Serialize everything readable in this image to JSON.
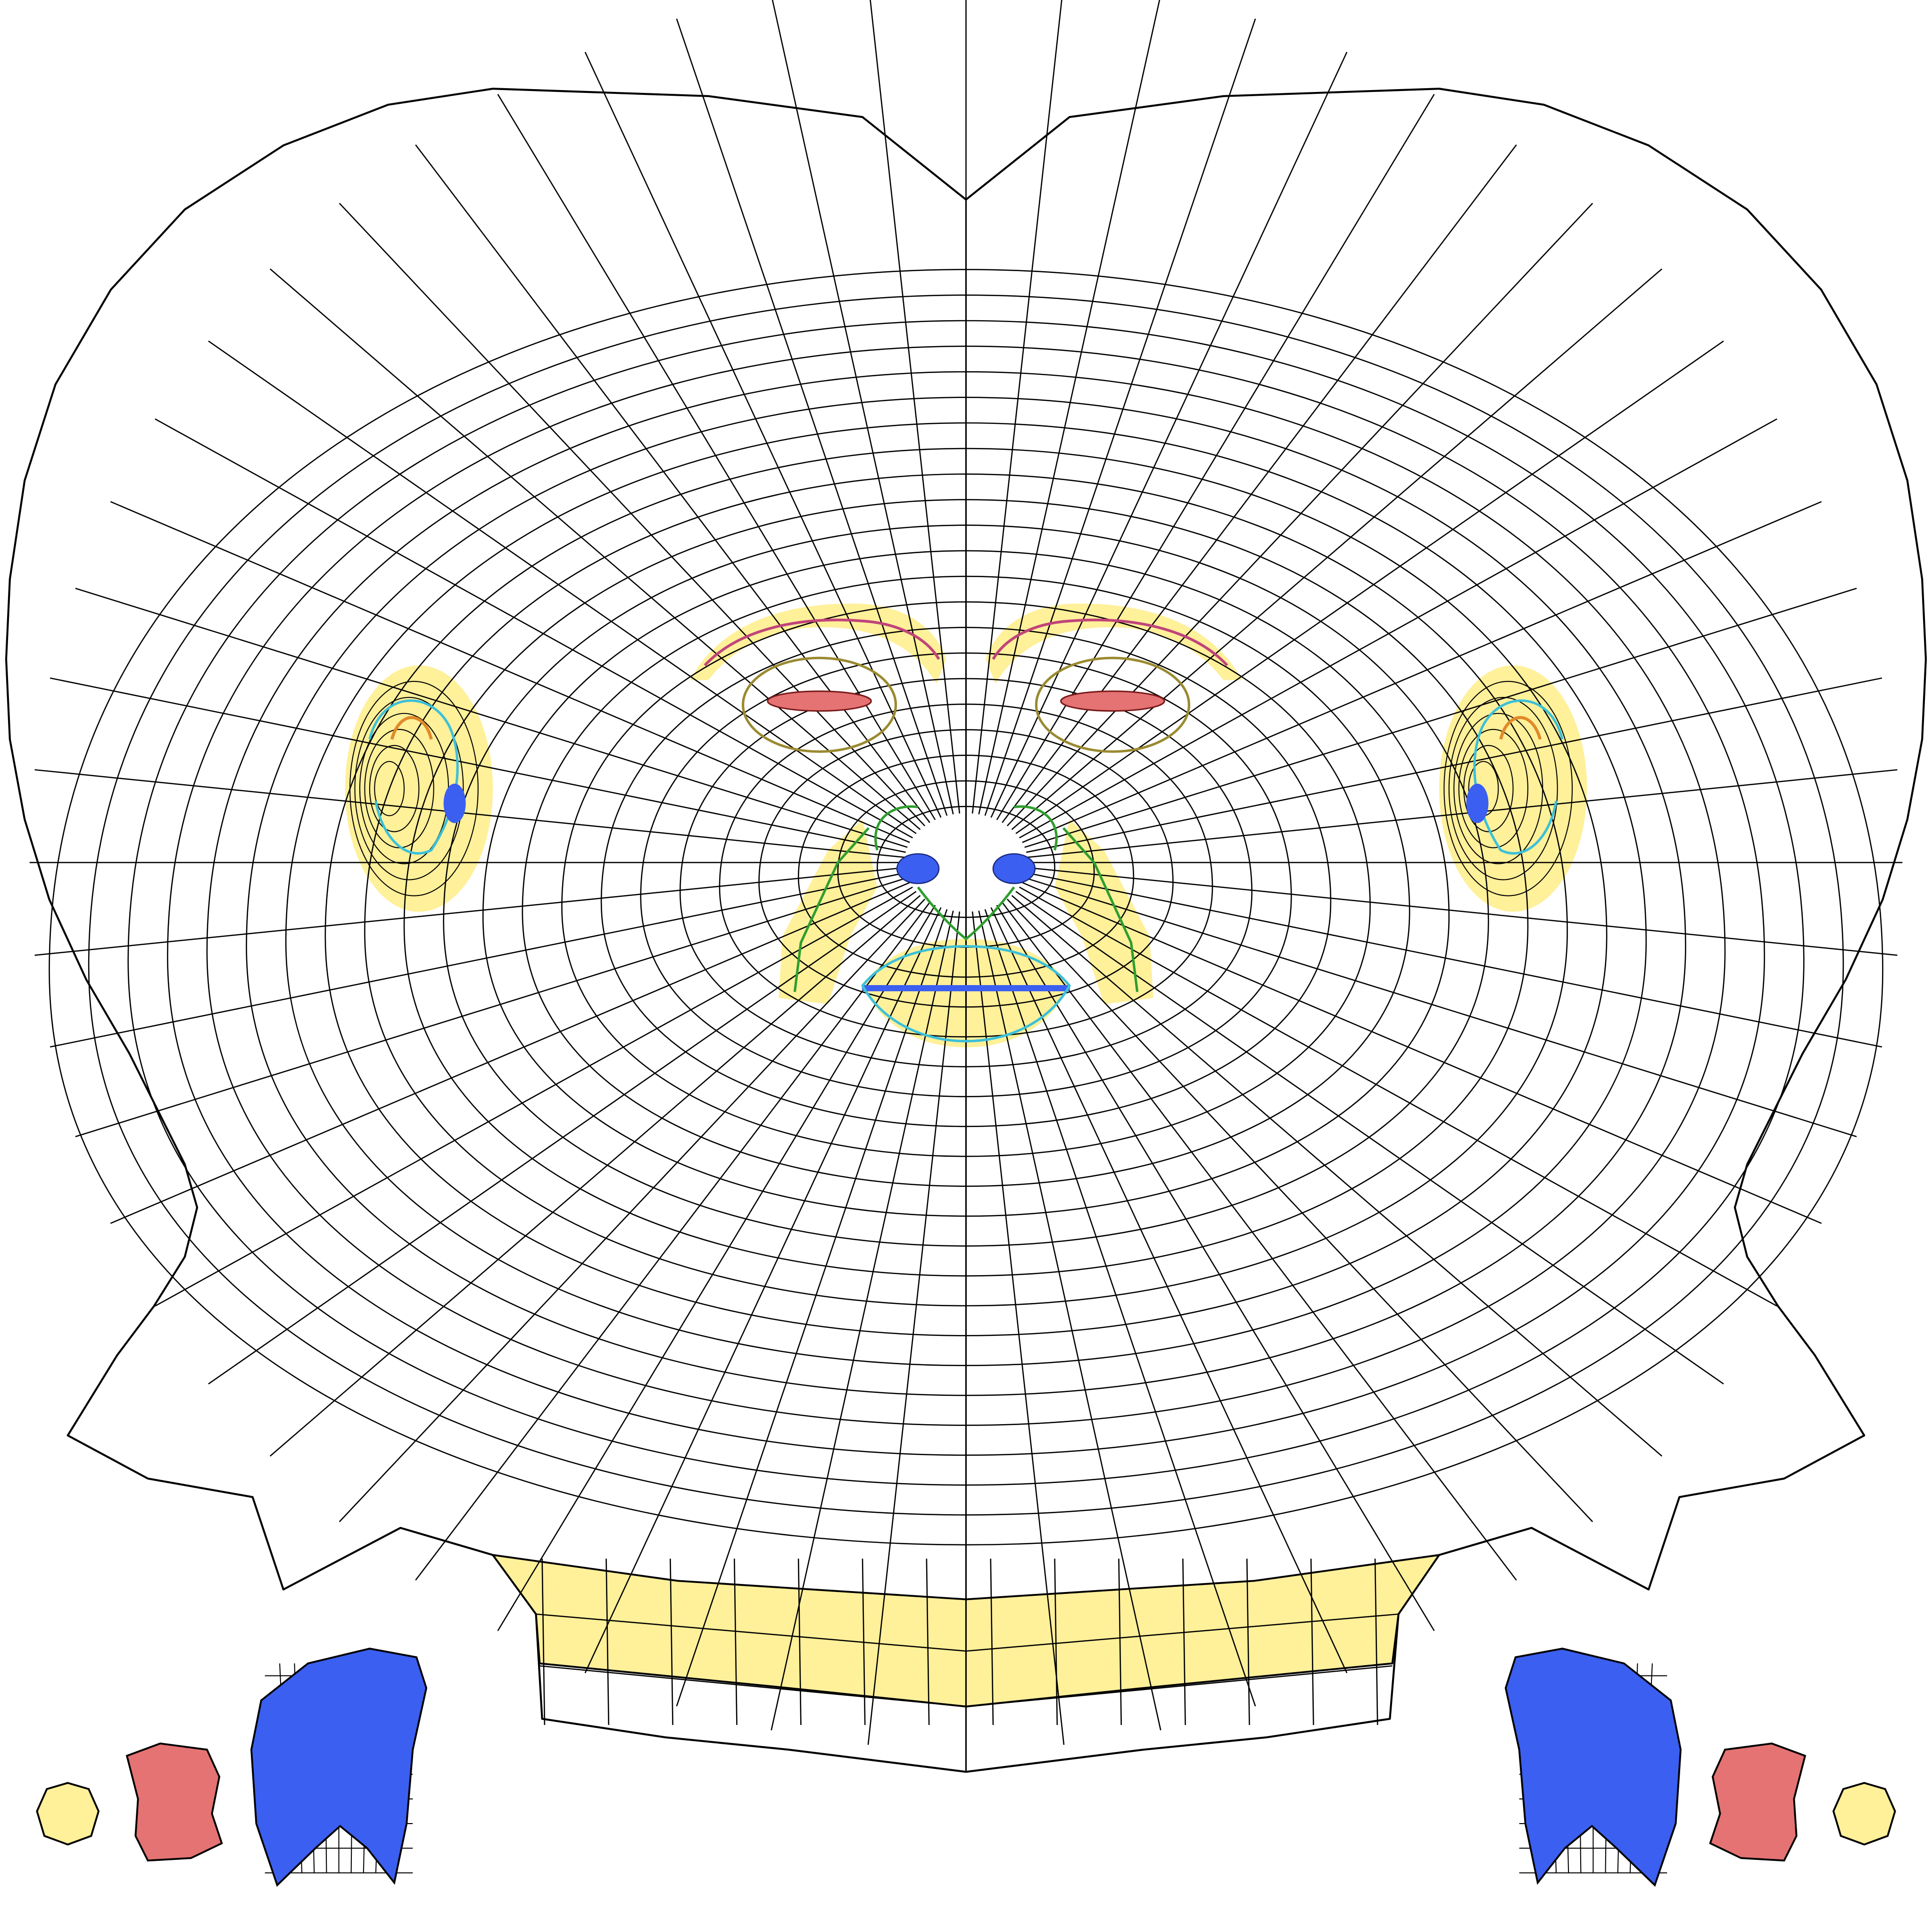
{
  "colors": {
    "background": "#ffffff",
    "wire": "#000000",
    "yellow": "#fff09a",
    "red": "#e57373",
    "blue": "#3b5ff0",
    "green": "#2e9e2e",
    "cyan": "#3cc0d8",
    "magenta": "#c0447a",
    "olive": "#9a8a30",
    "orange": "#e08a2a"
  },
  "regions": [
    "head-shell",
    "left-ear",
    "right-ear",
    "left-eye",
    "right-eye",
    "left-brow",
    "right-brow",
    "nose",
    "left-nostril",
    "right-nostril",
    "nasolabial-area",
    "mouth",
    "neck-band",
    "left-tongue",
    "right-tongue",
    "left-gum",
    "right-gum",
    "left-eyeball",
    "right-eyeball"
  ]
}
